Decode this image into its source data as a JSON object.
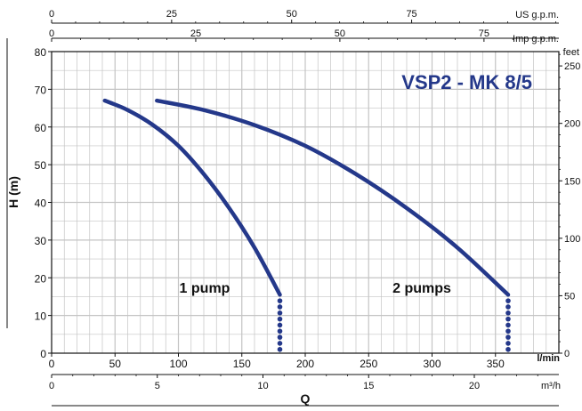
{
  "chart_data": {
    "type": "line",
    "title": "VSP2 - MK 8/5",
    "ylabel": "H (m)",
    "xlabel": "Q",
    "x_unit": "l/min",
    "xlim": [
      0,
      400
    ],
    "ylim": [
      0,
      80
    ],
    "grid": true,
    "x_ticks": [
      0,
      50,
      100,
      150,
      200,
      250,
      300,
      350
    ],
    "y_ticks": [
      0,
      10,
      20,
      30,
      40,
      50,
      60,
      70,
      80
    ],
    "top_axis_us": {
      "label": "US g.p.m.",
      "ticks": [
        0,
        25,
        50,
        75
      ]
    },
    "top_axis_imp": {
      "label": "Imp g.p.m.",
      "ticks": [
        0,
        25,
        50,
        75
      ]
    },
    "right_axis": {
      "label": "feet",
      "ticks": [
        0,
        50,
        100,
        150,
        200,
        250
      ]
    },
    "bottom_axis_m3h": {
      "label": "m³/h",
      "ticks": [
        0,
        5,
        10,
        15,
        20
      ]
    },
    "series": [
      {
        "name": "1 pump",
        "x": [
          42,
          60,
          80,
          100,
          120,
          140,
          160,
          180
        ],
        "y": [
          67,
          64.5,
          60.5,
          55,
          47.5,
          38.5,
          28,
          15.5
        ],
        "dotted_to_zero_x": 180
      },
      {
        "name": "2 pumps",
        "x": [
          83,
          120,
          160,
          200,
          240,
          280,
          320,
          360
        ],
        "y": [
          67,
          64.5,
          60.5,
          55,
          47.5,
          38.5,
          28,
          15.5
        ],
        "dotted_to_zero_x": 360
      }
    ],
    "colors": {
      "curve": "#24388a",
      "title": "#24388a",
      "grid": "#c4c4c4"
    }
  }
}
